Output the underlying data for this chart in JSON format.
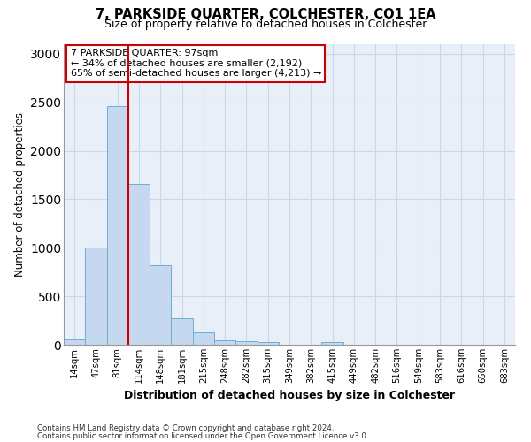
{
  "title": "7, PARKSIDE QUARTER, COLCHESTER, CO1 1EA",
  "subtitle": "Size of property relative to detached houses in Colchester",
  "xlabel": "Distribution of detached houses by size in Colchester",
  "ylabel": "Number of detached properties",
  "categories": [
    "14sqm",
    "47sqm",
    "81sqm",
    "114sqm",
    "148sqm",
    "181sqm",
    "215sqm",
    "248sqm",
    "282sqm",
    "315sqm",
    "349sqm",
    "382sqm",
    "415sqm",
    "449sqm",
    "482sqm",
    "516sqm",
    "549sqm",
    "583sqm",
    "616sqm",
    "650sqm",
    "683sqm"
  ],
  "bar_values": [
    55,
    1000,
    2460,
    1660,
    820,
    270,
    130,
    45,
    40,
    30,
    0,
    0,
    25,
    0,
    0,
    0,
    0,
    0,
    0,
    0,
    0
  ],
  "bar_color": "#c5d8f0",
  "bar_edge_color": "#6baed6",
  "grid_color": "#c8d8ec",
  "background_color": "#e8eff8",
  "vline_color": "#cc0000",
  "vline_x": 2.5,
  "annotation_text": "7 PARKSIDE QUARTER: 97sqm\n← 34% of detached houses are smaller (2,192)\n65% of semi-detached houses are larger (4,213) →",
  "annotation_box_color": "#ffffff",
  "annotation_box_edge_color": "#cc0000",
  "ylim": [
    0,
    3100
  ],
  "yticks": [
    0,
    500,
    1000,
    1500,
    2000,
    2500,
    3000
  ],
  "footnote1": "Contains HM Land Registry data © Crown copyright and database right 2024.",
  "footnote2": "Contains public sector information licensed under the Open Government Licence v3.0."
}
